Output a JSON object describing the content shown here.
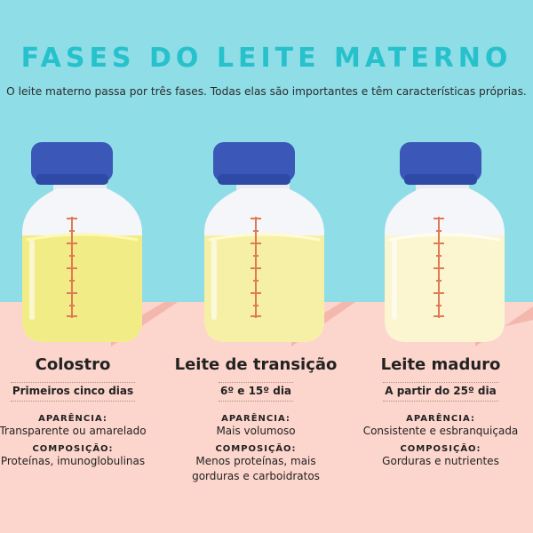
{
  "title": "FASES DO LEITE MATERNO",
  "subtitle": "O leite materno passa por três fases. Todas elas são importantes e têm características próprias.",
  "phases": [
    {
      "name": "Colostro",
      "period": "Primeiros cinco dias",
      "appearance_label": "APARÊNCIA:",
      "appearance": "Transparente ou amarelado",
      "composition_label": "COMPOSIÇÃO:",
      "composition": "Proteínas, imunoglobulinas",
      "milk_color": "#f2ec86"
    },
    {
      "name": "Leite de transição",
      "period": "6º e 15º dia",
      "appearance_label": "APARÊNCIA:",
      "appearance": "Mais volumoso",
      "composition_label": "COMPOSIÇÃO:",
      "composition": "Menos proteínas, mais gorduras e carboidratos",
      "milk_color": "#f6f0a6"
    },
    {
      "name": "Leite maduro",
      "period": "A partir do 25º dia",
      "appearance_label": "APARÊNCIA:",
      "appearance": "Consistente e esbranquiçada",
      "composition_label": "COMPOSIÇÃO:",
      "composition": "Gorduras e nutrientes",
      "milk_color": "#fbf6d0"
    }
  ],
  "colors": {
    "sky": "#8fdde7",
    "floor": "#fcd5cc",
    "title": "#27c1cc",
    "cap": "#3b57b8",
    "scale": "#e07a55"
  }
}
